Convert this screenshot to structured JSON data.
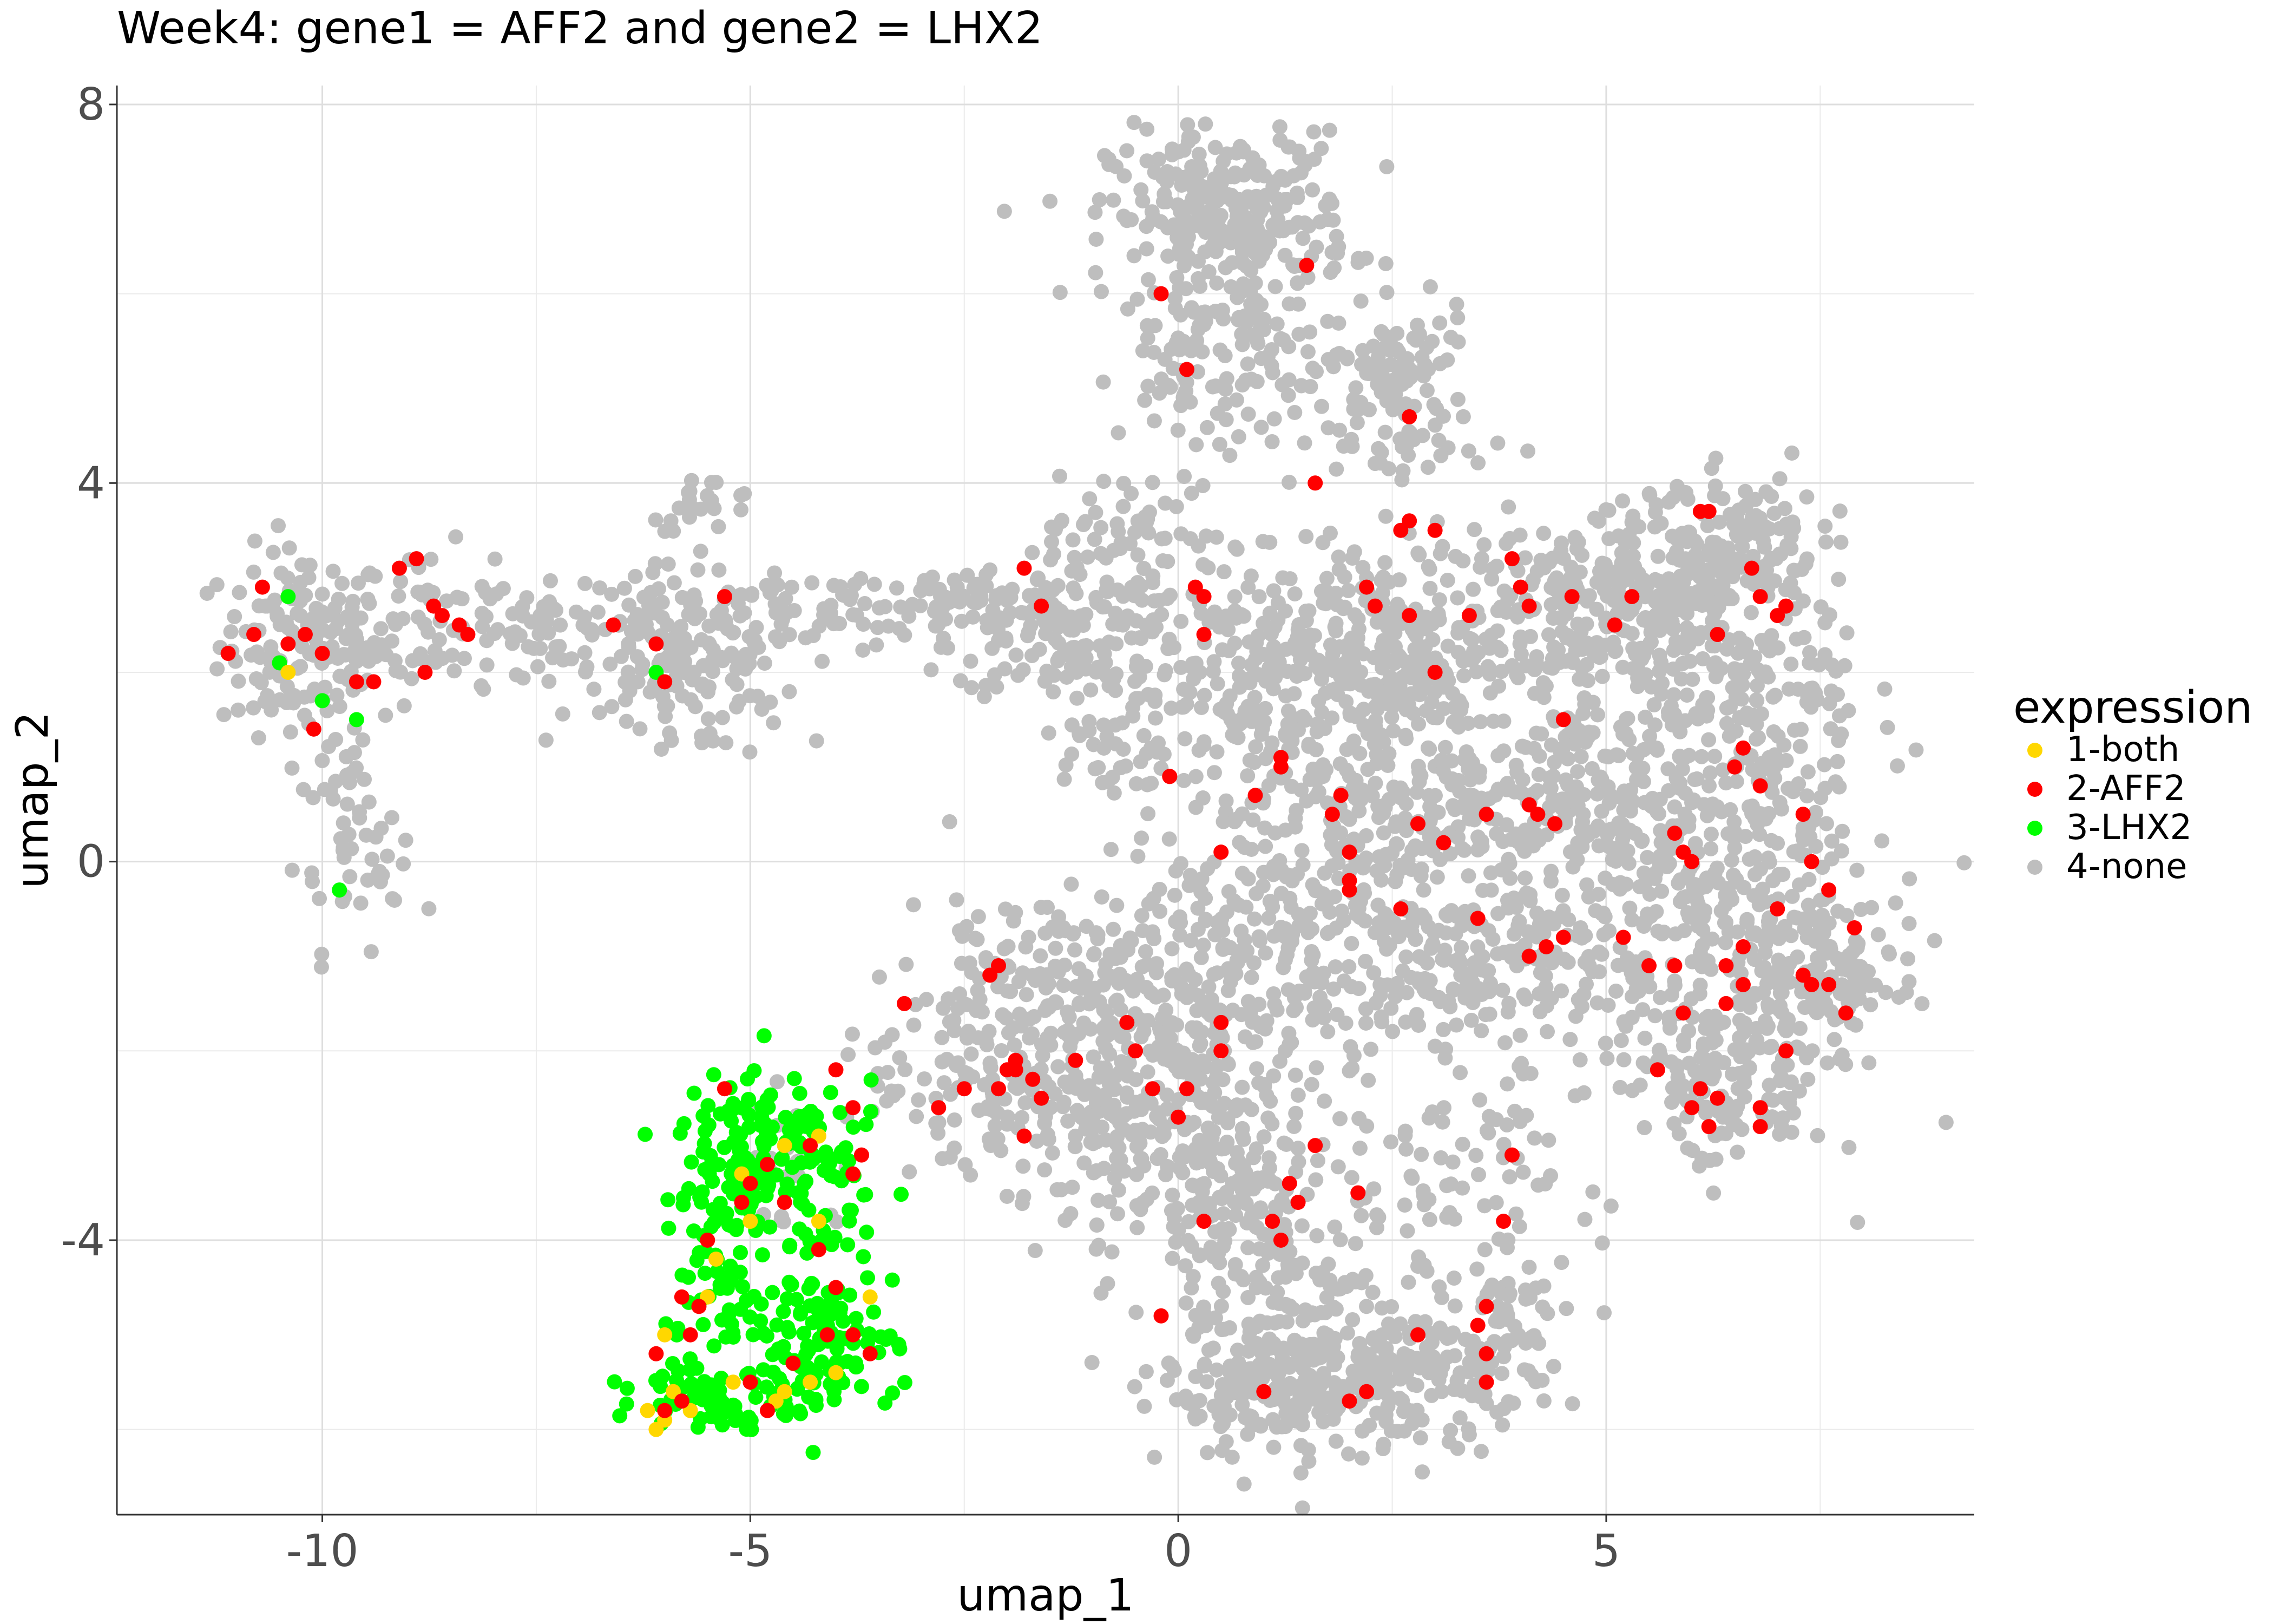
{
  "chart_data": {
    "type": "scatter",
    "title": "Week4: gene1 = AFF2 and gene2 = LHX2",
    "xlabel": "umap_1",
    "ylabel": "umap_2",
    "xlim": [
      -12.4,
      9.3
    ],
    "ylim": [
      -6.9,
      8.2
    ],
    "x_ticks": [
      -10,
      -5,
      0,
      5
    ],
    "x_tick_labels": [
      "-10",
      "-5",
      "0",
      "5"
    ],
    "y_ticks": [
      8,
      4,
      0,
      -4
    ],
    "y_tick_labels": [
      "8",
      "4",
      "0",
      "-4"
    ],
    "grid": true,
    "legend": {
      "title": "expression",
      "placement": "right",
      "entries": [
        {
          "label": "1-both",
          "color": "#FFD700"
        },
        {
          "label": "2-AFF2",
          "color": "#FF0000"
        },
        {
          "label": "3-LHX2",
          "color": "#00FF00"
        },
        {
          "label": "4-none",
          "color": "#BEBEBE"
        }
      ]
    },
    "series": [
      {
        "name": "4-none",
        "color": "#BEBEBE",
        "clusters": [
          {
            "cx": -10.2,
            "cy": 2.3,
            "sx": 0.5,
            "sy": 0.5,
            "n": 150
          },
          {
            "cx": -9.7,
            "cy": 0.5,
            "sx": 0.3,
            "sy": 0.7,
            "n": 45
          },
          {
            "cx": -9.3,
            "cy": -0.1,
            "sx": 0.2,
            "sy": 0.2,
            "n": 12
          },
          {
            "cx": -8.8,
            "cy": 2.5,
            "sx": 0.4,
            "sy": 0.4,
            "n": 55
          },
          {
            "cx": -7.5,
            "cy": 2.5,
            "sx": 0.6,
            "sy": 0.2,
            "n": 50
          },
          {
            "cx": -5.8,
            "cy": 2.3,
            "sx": 0.7,
            "sy": 0.4,
            "n": 140
          },
          {
            "cx": -5.5,
            "cy": 1.7,
            "sx": 0.5,
            "sy": 0.3,
            "n": 40
          },
          {
            "cx": -5.5,
            "cy": 3.8,
            "sx": 0.3,
            "sy": 0.15,
            "n": 20
          },
          {
            "cx": -4.2,
            "cy": 2.6,
            "sx": 0.6,
            "sy": 0.2,
            "n": 45
          },
          {
            "cx": -2.6,
            "cy": 2.7,
            "sx": 0.7,
            "sy": 0.2,
            "n": 60
          },
          {
            "cx": -1.4,
            "cy": 2.5,
            "sx": 0.6,
            "sy": 0.4,
            "n": 110
          },
          {
            "cx": -0.9,
            "cy": 1.4,
            "sx": 0.4,
            "sy": 0.6,
            "n": 55
          },
          {
            "cx": -0.8,
            "cy": 3.4,
            "sx": 0.35,
            "sy": 0.35,
            "n": 45
          },
          {
            "cx": 0.6,
            "cy": 6.8,
            "sx": 0.7,
            "sy": 0.45,
            "n": 290
          },
          {
            "cx": 0.2,
            "cy": 5.2,
            "sx": 0.45,
            "sy": 0.55,
            "n": 75
          },
          {
            "cx": 1.3,
            "cy": 5.2,
            "sx": 0.5,
            "sy": 0.5,
            "n": 50
          },
          {
            "cx": 2.6,
            "cy": 5.2,
            "sx": 0.4,
            "sy": 0.3,
            "n": 70
          },
          {
            "cx": 2.6,
            "cy": 4.5,
            "sx": 0.5,
            "sy": 0.4,
            "n": 45
          },
          {
            "cx": 0.4,
            "cy": 2.5,
            "sx": 0.7,
            "sy": 0.6,
            "n": 110
          },
          {
            "cx": 1.0,
            "cy": 1.2,
            "sx": 0.7,
            "sy": 0.7,
            "n": 130
          },
          {
            "cx": 2.4,
            "cy": 2.2,
            "sx": 0.7,
            "sy": 0.6,
            "n": 210
          },
          {
            "cx": 2.8,
            "cy": 0.4,
            "sx": 0.8,
            "sy": 0.7,
            "n": 190
          },
          {
            "cx": 4.4,
            "cy": 2.6,
            "sx": 0.9,
            "sy": 0.5,
            "n": 220
          },
          {
            "cx": 4.6,
            "cy": 0.8,
            "sx": 0.8,
            "sy": 0.6,
            "n": 170
          },
          {
            "cx": 5.6,
            "cy": 3.0,
            "sx": 0.5,
            "sy": 0.4,
            "n": 90
          },
          {
            "cx": 6.5,
            "cy": 3.4,
            "sx": 0.5,
            "sy": 0.35,
            "n": 110
          },
          {
            "cx": 6.6,
            "cy": 1.6,
            "sx": 0.7,
            "sy": 1.0,
            "n": 230
          },
          {
            "cx": 6.5,
            "cy": -0.5,
            "sx": 0.9,
            "sy": 0.8,
            "n": 260
          },
          {
            "cx": 7.6,
            "cy": -1.2,
            "sx": 0.4,
            "sy": 0.4,
            "n": 90
          },
          {
            "cx": 6.4,
            "cy": -2.3,
            "sx": 0.6,
            "sy": 0.5,
            "n": 150
          },
          {
            "cx": 4.4,
            "cy": -1.0,
            "sx": 0.8,
            "sy": 0.6,
            "n": 120
          },
          {
            "cx": 3.2,
            "cy": -1.3,
            "sx": 0.6,
            "sy": 0.5,
            "n": 80
          },
          {
            "cx": 1.6,
            "cy": -0.6,
            "sx": 0.8,
            "sy": 0.6,
            "n": 150
          },
          {
            "cx": 0.2,
            "cy": -1.6,
            "sx": 0.8,
            "sy": 0.7,
            "n": 250
          },
          {
            "cx": -1.8,
            "cy": -1.4,
            "sx": 0.7,
            "sy": 0.6,
            "n": 150
          },
          {
            "cx": -2.2,
            "cy": -2.6,
            "sx": 0.5,
            "sy": 0.4,
            "n": 60
          },
          {
            "cx": -0.7,
            "cy": -2.9,
            "sx": 0.6,
            "sy": 0.5,
            "n": 130
          },
          {
            "cx": 0.6,
            "cy": -3.4,
            "sx": 0.6,
            "sy": 0.6,
            "n": 150
          },
          {
            "cx": 1.4,
            "cy": -4.8,
            "sx": 0.7,
            "sy": 0.6,
            "n": 130
          },
          {
            "cx": 1.4,
            "cy": -5.6,
            "sx": 0.8,
            "sy": 0.35,
            "n": 200
          },
          {
            "cx": 3.0,
            "cy": -5.4,
            "sx": 0.7,
            "sy": 0.4,
            "n": 120
          },
          {
            "cx": 3.9,
            "cy": -4.8,
            "sx": 0.3,
            "sy": 0.4,
            "n": 45
          },
          {
            "cx": 2.6,
            "cy": -3.5,
            "sx": 0.5,
            "sy": 0.5,
            "n": 45
          },
          {
            "cx": 4.0,
            "cy": -3.2,
            "sx": 0.4,
            "sy": 0.4,
            "n": 30
          },
          {
            "cx": -4.5,
            "cy": -3.2,
            "sx": 0.4,
            "sy": 0.4,
            "n": 25
          },
          {
            "cx": -3.2,
            "cy": -2.4,
            "sx": 0.4,
            "sy": 0.4,
            "n": 25
          }
        ]
      },
      {
        "name": "3-LHX2",
        "color": "#00FF00",
        "clusters": [
          {
            "cx": -5.0,
            "cy": -3.0,
            "sx": 0.4,
            "sy": 0.45,
            "n": 110
          },
          {
            "cx": -4.1,
            "cy": -3.4,
            "sx": 0.35,
            "sy": 0.45,
            "n": 60
          },
          {
            "cx": -5.4,
            "cy": -4.4,
            "sx": 0.3,
            "sy": 0.5,
            "n": 50
          },
          {
            "cx": -4.3,
            "cy": -5.1,
            "sx": 0.5,
            "sy": 0.4,
            "n": 130
          },
          {
            "cx": -5.5,
            "cy": -5.6,
            "sx": 0.4,
            "sy": 0.2,
            "n": 50
          }
        ],
        "points": [
          [
            -10.4,
            2.8
          ],
          [
            -10.5,
            2.1
          ],
          [
            -10.0,
            1.7
          ],
          [
            -9.6,
            1.5
          ],
          [
            -9.8,
            -0.3
          ],
          [
            -6.1,
            2.0
          ]
        ]
      },
      {
        "name": "1-both",
        "color": "#FFD700",
        "points": [
          [
            -10.4,
            2.0
          ],
          [
            -6.2,
            -5.8
          ],
          [
            -6.1,
            -6.0
          ],
          [
            -6.0,
            -5.9
          ],
          [
            -5.9,
            -5.6
          ],
          [
            -5.7,
            -5.8
          ],
          [
            -5.5,
            -4.6
          ],
          [
            -5.4,
            -4.2
          ],
          [
            -5.1,
            -3.3
          ],
          [
            -5.0,
            -3.8
          ],
          [
            -4.6,
            -3.0
          ],
          [
            -4.2,
            -2.9
          ],
          [
            -4.2,
            -3.8
          ],
          [
            -4.0,
            -5.4
          ],
          [
            -4.3,
            -5.5
          ],
          [
            -4.6,
            -5.6
          ],
          [
            -4.7,
            -5.7
          ],
          [
            -5.2,
            -5.5
          ],
          [
            -3.6,
            -4.6
          ],
          [
            -6.0,
            -5.0
          ]
        ]
      },
      {
        "name": "2-AFF2",
        "color": "#FF0000",
        "points": [
          [
            -10.7,
            2.9
          ],
          [
            -11.1,
            2.2
          ],
          [
            -10.8,
            2.4
          ],
          [
            -10.4,
            2.3
          ],
          [
            -10.2,
            2.4
          ],
          [
            -10.0,
            2.2
          ],
          [
            -9.6,
            1.9
          ],
          [
            -9.4,
            1.9
          ],
          [
            -9.1,
            3.1
          ],
          [
            -8.9,
            3.2
          ],
          [
            -8.7,
            2.7
          ],
          [
            -8.6,
            2.6
          ],
          [
            -8.8,
            2.0
          ],
          [
            -8.4,
            2.5
          ],
          [
            -8.3,
            2.4
          ],
          [
            -10.1,
            1.4
          ],
          [
            -6.6,
            2.5
          ],
          [
            -6.1,
            2.3
          ],
          [
            -6.0,
            1.9
          ],
          [
            -5.3,
            2.8
          ],
          [
            -1.8,
            3.1
          ],
          [
            -1.6,
            2.7
          ],
          [
            -0.2,
            6.0
          ],
          [
            0.1,
            5.2
          ],
          [
            0.2,
            2.9
          ],
          [
            0.3,
            2.8
          ],
          [
            0.3,
            2.4
          ],
          [
            -0.1,
            0.9
          ],
          [
            -0.1,
            0.9
          ],
          [
            0.5,
            0.1
          ],
          [
            1.2,
            1.1
          ],
          [
            1.2,
            1.0
          ],
          [
            0.9,
            0.7
          ],
          [
            1.5,
            6.3
          ],
          [
            1.6,
            4.0
          ],
          [
            1.8,
            0.5
          ],
          [
            1.9,
            0.7
          ],
          [
            2.0,
            0.1
          ],
          [
            2.0,
            -0.2
          ],
          [
            2.0,
            -0.3
          ],
          [
            2.2,
            2.9
          ],
          [
            2.3,
            2.7
          ],
          [
            2.6,
            3.5
          ],
          [
            2.7,
            3.6
          ],
          [
            2.7,
            4.7
          ],
          [
            2.7,
            2.6
          ],
          [
            2.8,
            0.4
          ],
          [
            3.0,
            3.5
          ],
          [
            3.0,
            2.0
          ],
          [
            3.1,
            0.2
          ],
          [
            2.6,
            -0.5
          ],
          [
            3.4,
            2.6
          ],
          [
            3.6,
            0.5
          ],
          [
            3.5,
            -0.6
          ],
          [
            3.9,
            3.2
          ],
          [
            4.0,
            2.9
          ],
          [
            4.1,
            2.7
          ],
          [
            4.1,
            0.6
          ],
          [
            4.2,
            0.5
          ],
          [
            4.4,
            0.4
          ],
          [
            4.5,
            1.5
          ],
          [
            4.6,
            2.8
          ],
          [
            5.1,
            2.5
          ],
          [
            5.3,
            2.8
          ],
          [
            4.3,
            -0.9
          ],
          [
            4.1,
            -1.0
          ],
          [
            4.5,
            -0.8
          ],
          [
            5.2,
            -0.8
          ],
          [
            5.5,
            -1.1
          ],
          [
            5.8,
            0.3
          ],
          [
            5.9,
            0.1
          ],
          [
            6.0,
            0.0
          ],
          [
            6.1,
            3.7
          ],
          [
            6.2,
            3.7
          ],
          [
            6.3,
            2.4
          ],
          [
            6.5,
            1.0
          ],
          [
            6.6,
            1.2
          ],
          [
            6.8,
            0.8
          ],
          [
            6.7,
            3.1
          ],
          [
            6.8,
            2.8
          ],
          [
            7.0,
            2.6
          ],
          [
            7.1,
            2.7
          ],
          [
            7.3,
            0.5
          ],
          [
            7.0,
            -0.5
          ],
          [
            7.4,
            0.0
          ],
          [
            7.6,
            -0.3
          ],
          [
            7.9,
            -0.7
          ],
          [
            7.3,
            -1.2
          ],
          [
            7.4,
            -1.3
          ],
          [
            7.6,
            -1.3
          ],
          [
            7.8,
            -1.6
          ],
          [
            6.4,
            -1.1
          ],
          [
            6.6,
            -1.3
          ],
          [
            6.6,
            -0.9
          ],
          [
            6.4,
            -1.5
          ],
          [
            5.8,
            -1.1
          ],
          [
            5.9,
            -1.6
          ],
          [
            6.1,
            -2.4
          ],
          [
            6.0,
            -2.6
          ],
          [
            6.2,
            -2.8
          ],
          [
            6.3,
            -2.5
          ],
          [
            6.8,
            -2.6
          ],
          [
            6.8,
            -2.8
          ],
          [
            7.1,
            -2.0
          ],
          [
            5.6,
            -2.2
          ],
          [
            3.9,
            -3.1
          ],
          [
            3.8,
            -3.8
          ],
          [
            3.6,
            -4.7
          ],
          [
            3.5,
            -4.9
          ],
          [
            3.6,
            -5.2
          ],
          [
            3.6,
            -5.5
          ],
          [
            2.8,
            -5.0
          ],
          [
            2.2,
            -5.6
          ],
          [
            2.0,
            -5.7
          ],
          [
            1.0,
            -5.6
          ],
          [
            1.3,
            -3.4
          ],
          [
            1.4,
            -3.6
          ],
          [
            1.2,
            -4.0
          ],
          [
            1.1,
            -3.8
          ],
          [
            1.6,
            -3.0
          ],
          [
            2.1,
            -3.5
          ],
          [
            0.5,
            -1.7
          ],
          [
            0.5,
            -2.0
          ],
          [
            0.1,
            -2.4
          ],
          [
            0.0,
            -2.7
          ],
          [
            -0.6,
            -1.7
          ],
          [
            -0.5,
            -2.0
          ],
          [
            -1.2,
            -2.1
          ],
          [
            -1.6,
            -2.5
          ],
          [
            -1.7,
            -2.3
          ],
          [
            -1.9,
            -2.1
          ],
          [
            -1.9,
            -2.2
          ],
          [
            -2.0,
            -2.2
          ],
          [
            -2.1,
            -2.4
          ],
          [
            -2.1,
            -1.1
          ],
          [
            -2.2,
            -1.2
          ],
          [
            -2.5,
            -2.4
          ],
          [
            -2.8,
            -2.6
          ],
          [
            -3.2,
            -1.5
          ],
          [
            -1.8,
            -2.9
          ],
          [
            -0.3,
            -2.4
          ],
          [
            -0.2,
            -4.8
          ],
          [
            0.3,
            -3.8
          ],
          [
            -4.0,
            -2.2
          ],
          [
            -3.8,
            -2.6
          ],
          [
            -3.7,
            -3.1
          ],
          [
            -3.8,
            -3.3
          ],
          [
            -4.6,
            -3.6
          ],
          [
            -4.2,
            -4.1
          ],
          [
            -5.0,
            -3.4
          ],
          [
            -5.1,
            -3.6
          ],
          [
            -5.3,
            -2.4
          ],
          [
            -5.5,
            -4.0
          ],
          [
            -5.6,
            -4.7
          ],
          [
            -5.7,
            -5.0
          ],
          [
            -5.8,
            -4.6
          ],
          [
            -6.1,
            -5.2
          ],
          [
            -6.0,
            -5.8
          ],
          [
            -5.8,
            -5.7
          ],
          [
            -4.0,
            -4.5
          ],
          [
            -4.1,
            -5.0
          ],
          [
            -3.8,
            -5.0
          ],
          [
            -3.6,
            -5.2
          ],
          [
            -4.5,
            -5.3
          ],
          [
            -4.8,
            -5.8
          ],
          [
            -5.0,
            -5.5
          ],
          [
            -4.8,
            -3.2
          ],
          [
            -4.3,
            -3.0
          ]
        ]
      }
    ]
  }
}
